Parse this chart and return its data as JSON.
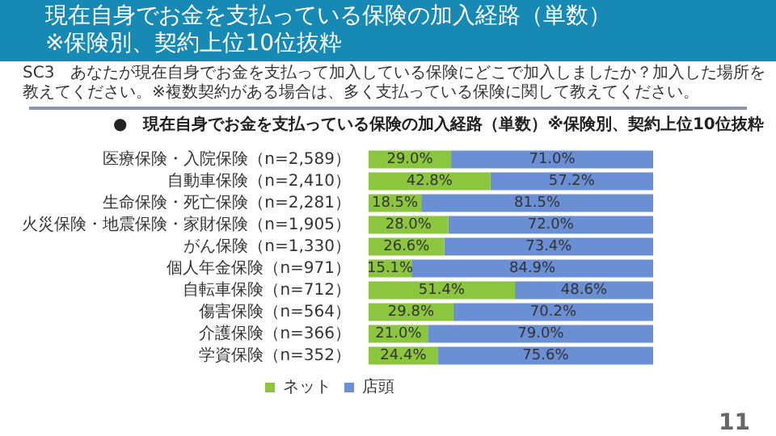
{
  "chart_data": {
    "type": "bar",
    "orientation": "horizontal",
    "stacked": true,
    "title": "現在自身でお金を支払っている保険の加入経路（単数）",
    "subtitle": "※保険別、契約上位10位抜粋",
    "annotations": [
      "SC3　あなたが現在自身でお金を支払って加入している保険にどこで加入しましたか？加入した場所を教えてください。※複数契約がある場合は、多く支払っている保険に関して教えてください。",
      "●　現在自身でお金を支払っている保険の加入経路（単数）※保険別、契約上位10位抜粋",
      "11"
    ],
    "categories": [
      "医療保険・入院保険（n=2,589）",
      "自動車保険（n=2,410）",
      "生命保険・死亡保険（n=2,281）",
      "火災保険・地震保険・家財保険（n=1,905）",
      "がん保険（n=1,330）",
      "個人年金保険（n=971）",
      "自転車保険（n=712）",
      "傷害保険（n=564）",
      "介護保険（n=366）",
      "学資保険（n=352）"
    ],
    "xlim": [
      0,
      100
    ],
    "tick_labels": "y",
    "legend": "bottom",
    "series": [
      {
        "name": "ネット",
        "color": "#8cc63f",
        "values": [
          29.0,
          42.8,
          18.5,
          28.0,
          26.6,
          15.1,
          51.4,
          29.8,
          21.0,
          24.4
        ],
        "value_labels": [
          "29.0%",
          "42.8%",
          "18.5%",
          "28.0%",
          "26.6%",
          "15.1%",
          "51.4%",
          "29.8%",
          "21.0%",
          "24.4%"
        ]
      },
      {
        "name": "店頭",
        "color": "#6a8fd4",
        "values": [
          71.0,
          57.2,
          81.5,
          72.0,
          73.4,
          84.9,
          48.6,
          70.2,
          79.0,
          75.6
        ],
        "value_labels": [
          "71.0%",
          "57.2%",
          "81.5%",
          "72.0%",
          "73.4%",
          "84.9%",
          "48.6%",
          "70.2%",
          "79.0%",
          "75.6%"
        ]
      }
    ]
  }
}
